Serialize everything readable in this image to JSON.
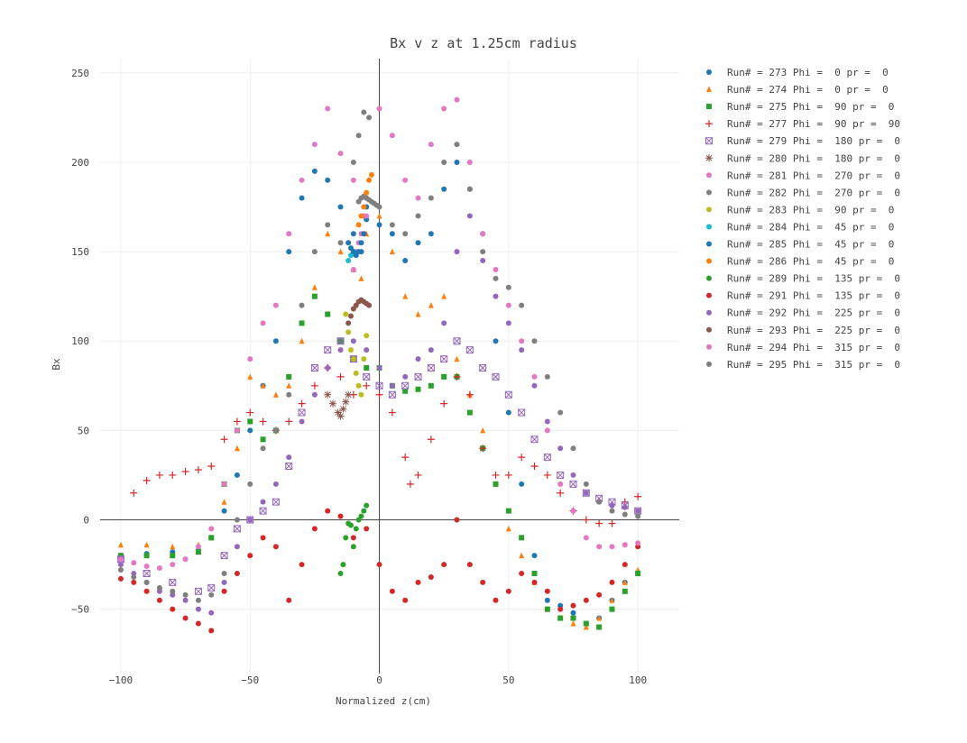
{
  "chart_data": {
    "type": "scatter",
    "title": "Bx v z at 1.25cm radius",
    "xlabel": "Normalized z(cm)",
    "ylabel": "Bx",
    "xlim": [
      -108,
      116
    ],
    "ylim": [
      -86,
      258
    ],
    "xticks": [
      -100,
      -50,
      0,
      50,
      100
    ],
    "yticks": [
      -50,
      0,
      50,
      100,
      150,
      200,
      250
    ],
    "xtick_labels": [
      "−100",
      "−50",
      "0",
      "50",
      "100"
    ],
    "ytick_labels": [
      "−50",
      "0",
      "50",
      "100",
      "150",
      "200",
      "250"
    ],
    "grid": true,
    "legend_position": "right",
    "series": [
      {
        "name": "Run# = 273 Phi =  0 pr =  0",
        "color": "#1f77b4",
        "marker": "circle",
        "x": [
          -100,
          -90,
          -80,
          -70,
          -65,
          -60,
          -55,
          -50,
          -45,
          -40,
          -35,
          -30,
          -25,
          -20,
          -15,
          -10,
          -7,
          -5,
          0,
          5,
          10,
          15,
          20,
          25,
          30,
          35,
          40,
          45,
          50,
          55,
          60,
          65,
          70,
          75,
          80,
          85,
          90,
          95,
          100
        ],
        "y": [
          -20,
          -19,
          -18,
          -17,
          -10,
          5,
          25,
          50,
          75,
          100,
          150,
          180,
          195,
          190,
          175,
          160,
          150,
          175,
          165,
          160,
          145,
          155,
          160,
          185,
          200,
          185,
          160,
          100,
          60,
          20,
          -20,
          -45,
          -48,
          -52,
          -58,
          -55,
          -45,
          -35,
          -30
        ]
      },
      {
        "name": "Run# = 274 Phi =  0 pr =  0",
        "color": "#ff7f0e",
        "marker": "triangle",
        "x": [
          -100,
          -90,
          -80,
          -70,
          -65,
          -60,
          -55,
          -50,
          -45,
          -40,
          -35,
          -30,
          -25,
          -20,
          -15,
          -10,
          -7,
          -5,
          0,
          5,
          10,
          15,
          20,
          25,
          30,
          35,
          40,
          45,
          50,
          55,
          60,
          65,
          70,
          75,
          80,
          85,
          90,
          95,
          100
        ],
        "y": [
          -14,
          -14,
          -15,
          -14,
          -10,
          10,
          40,
          80,
          75,
          70,
          75,
          100,
          130,
          160,
          150,
          140,
          135,
          160,
          170,
          150,
          125,
          115,
          120,
          125,
          90,
          70,
          50,
          20,
          -5,
          -20,
          -35,
          -50,
          -55,
          -58,
          -60,
          -55,
          -45,
          -35,
          -28
        ]
      },
      {
        "name": "Run# = 275 Phi =  90 pr =  0",
        "color": "#2ca02c",
        "marker": "square",
        "x": [
          -100,
          -90,
          -80,
          -70,
          -65,
          -60,
          -55,
          -50,
          -45,
          -40,
          -35,
          -30,
          -25,
          -20,
          -15,
          -10,
          -5,
          0,
          5,
          10,
          15,
          20,
          25,
          30,
          35,
          40,
          45,
          50,
          55,
          60,
          65,
          70,
          75,
          80,
          85,
          90,
          95,
          100
        ],
        "y": [
          -20,
          -20,
          -20,
          -18,
          -10,
          20,
          50,
          55,
          45,
          50,
          80,
          110,
          125,
          115,
          100,
          90,
          85,
          85,
          75,
          72,
          73,
          75,
          80,
          80,
          60,
          40,
          20,
          5,
          -10,
          -30,
          -50,
          -55,
          -55,
          -58,
          -60,
          -50,
          -40,
          -30
        ]
      },
      {
        "name": "Run# = 277 Phi =  90 pr =  90",
        "color": "#d62728",
        "marker": "cross",
        "x": [
          -95,
          -90,
          -85,
          -80,
          -75,
          -70,
          -65,
          -60,
          -55,
          -50,
          -45,
          -40,
          -35,
          -30,
          -25,
          -20,
          -15,
          -10,
          -5,
          0,
          5,
          10,
          12,
          15,
          20,
          25,
          30,
          35,
          40,
          45,
          50,
          55,
          60,
          65,
          70,
          75,
          80,
          85,
          90,
          95,
          100
        ],
        "y": [
          15,
          22,
          25,
          25,
          27,
          28,
          30,
          45,
          55,
          60,
          55,
          50,
          55,
          65,
          75,
          85,
          80,
          70,
          75,
          70,
          60,
          35,
          20,
          25,
          45,
          65,
          80,
          70,
          40,
          25,
          25,
          35,
          30,
          25,
          15,
          5,
          0,
          -2,
          -2,
          10,
          13
        ]
      },
      {
        "name": "Run# = 279 Phi =  180 pr =  0",
        "color": "#9467bd",
        "marker": "square-x",
        "x": [
          -100,
          -90,
          -80,
          -70,
          -65,
          -60,
          -55,
          -50,
          -45,
          -40,
          -35,
          -30,
          -25,
          -20,
          -15,
          -10,
          -5,
          0,
          5,
          10,
          15,
          20,
          25,
          30,
          35,
          40,
          45,
          50,
          55,
          60,
          65,
          70,
          75,
          80,
          85,
          90,
          95,
          100
        ],
        "y": [
          -22,
          -30,
          -35,
          -40,
          -38,
          -20,
          -5,
          0,
          5,
          10,
          30,
          60,
          85,
          95,
          100,
          90,
          80,
          75,
          70,
          75,
          80,
          85,
          90,
          100,
          95,
          85,
          80,
          70,
          60,
          45,
          35,
          25,
          20,
          15,
          12,
          10,
          8,
          5
        ]
      },
      {
        "name": "Run# = 280 Phi =  180 pr =  0",
        "color": "#8c564b",
        "marker": "star",
        "x": [
          -20,
          -18,
          -16,
          -15,
          -14,
          -13,
          -12
        ],
        "y": [
          70,
          65,
          60,
          58,
          62,
          66,
          70
        ]
      },
      {
        "name": "Run# = 281 Phi =  270 pr =  0",
        "color": "#e377c2",
        "marker": "circle",
        "x": [
          -10,
          -9,
          -8,
          -7,
          -6,
          -5
        ],
        "y": [
          140,
          150,
          155,
          160,
          170,
          180
        ]
      },
      {
        "name": "Run# = 282 Phi =  270 pr =  0",
        "color": "#7f7f7f",
        "marker": "circle",
        "x": [
          -8,
          -7,
          -6,
          -5,
          -4,
          -3,
          -2,
          -1
        ],
        "y": [
          178,
          180,
          181,
          180,
          179,
          178,
          177,
          176
        ]
      },
      {
        "name": "Run# = 283 Phi =  90 pr =  0",
        "color": "#bcbd22",
        "marker": "circle",
        "x": [
          -13,
          -12,
          -11,
          -10,
          -9,
          -8,
          -7,
          -6,
          -5
        ],
        "y": [
          115,
          105,
          95,
          90,
          82,
          75,
          70,
          90,
          103
        ]
      },
      {
        "name": "Run# = 284 Phi =  45 pr =  0",
        "color": "#17becf",
        "marker": "circle",
        "x": [
          -12,
          -11,
          -10
        ],
        "y": [
          145,
          148,
          150
        ]
      },
      {
        "name": "Run# = 285 Phi =  45 pr =  0",
        "color": "#1f77b4",
        "marker": "circle",
        "x": [
          -12,
          -11,
          -10,
          -9,
          -8,
          -7,
          -6,
          -5
        ],
        "y": [
          155,
          152,
          150,
          148,
          150,
          155,
          160,
          168
        ]
      },
      {
        "name": "Run# = 286 Phi =  45 pr =  0",
        "color": "#ff7f0e",
        "marker": "circle",
        "x": [
          -8,
          -7,
          -6,
          -5,
          -4,
          -3
        ],
        "y": [
          165,
          170,
          175,
          183,
          190,
          193
        ]
      },
      {
        "name": "Run# = 289 Phi =  135 pr =  0",
        "color": "#2ca02c",
        "marker": "circle",
        "x": [
          -15,
          -14,
          -13,
          -12,
          -11,
          -10,
          -9,
          -8,
          -7,
          -6,
          -5
        ],
        "y": [
          -30,
          -25,
          -10,
          -2,
          -3,
          -15,
          -5,
          0,
          2,
          5,
          8
        ]
      },
      {
        "name": "Run# = 291 Phi =  135 pr =  0",
        "color": "#d62728",
        "marker": "circle",
        "x": [
          -100,
          -95,
          -90,
          -85,
          -80,
          -75,
          -70,
          -65,
          -60,
          -55,
          -50,
          -45,
          -40,
          -35,
          -30,
          -25,
          -20,
          -15,
          -10,
          -5,
          0,
          5,
          10,
          15,
          20,
          25,
          30,
          35,
          40,
          45,
          50,
          55,
          60,
          65,
          70,
          75,
          80,
          85,
          90,
          95,
          100
        ],
        "y": [
          -33,
          -35,
          -40,
          -45,
          -50,
          -55,
          -58,
          -62,
          -40,
          -30,
          -20,
          -10,
          -15,
          -45,
          -25,
          -5,
          5,
          2,
          -10,
          -5,
          -25,
          -40,
          -45,
          -35,
          -32,
          -25,
          0,
          -25,
          -35,
          -45,
          -40,
          -30,
          -35,
          -40,
          -50,
          -48,
          -45,
          -42,
          -35,
          -25,
          -15
        ]
      },
      {
        "name": "Run# = 292 Phi =  225 pr =  0",
        "color": "#9467bd",
        "marker": "circle",
        "x": [
          -100,
          -95,
          -90,
          -85,
          -80,
          -75,
          -70,
          -65,
          -60,
          -55,
          -50,
          -45,
          -40,
          -35,
          -30,
          -25,
          -20,
          -15,
          -10,
          -5,
          0,
          5,
          10,
          15,
          20,
          25,
          30,
          35,
          40,
          45,
          50,
          55,
          60,
          65,
          70,
          75,
          80,
          85,
          90,
          95,
          100
        ],
        "y": [
          -25,
          -30,
          -35,
          -40,
          -42,
          -45,
          -50,
          -52,
          -35,
          -15,
          0,
          10,
          20,
          35,
          55,
          70,
          85,
          95,
          100,
          95,
          85,
          75,
          80,
          90,
          95,
          110,
          150,
          170,
          145,
          125,
          110,
          95,
          75,
          55,
          40,
          25,
          15,
          10,
          8,
          7,
          5
        ]
      },
      {
        "name": "Run# = 293 Phi =  225 pr =  0",
        "color": "#8c564b",
        "marker": "circle",
        "x": [
          -12,
          -11,
          -10,
          -9,
          -8,
          -7,
          -6,
          -5,
          -4
        ],
        "y": [
          110,
          114,
          118,
          120,
          122,
          123,
          122,
          121,
          120
        ]
      },
      {
        "name": "Run# = 294 Phi =  315 pr =  0",
        "color": "#e377c2",
        "marker": "circle",
        "x": [
          -100,
          -95,
          -90,
          -85,
          -80,
          -75,
          -70,
          -65,
          -60,
          -55,
          -50,
          -45,
          -40,
          -35,
          -30,
          -25,
          -20,
          -15,
          -10,
          -5,
          0,
          5,
          10,
          15,
          20,
          25,
          30,
          35,
          40,
          45,
          50,
          55,
          60,
          65,
          70,
          75,
          80,
          85,
          90,
          95,
          100
        ],
        "y": [
          -22,
          -24,
          -26,
          -27,
          -25,
          -22,
          -15,
          -5,
          20,
          50,
          90,
          110,
          120,
          160,
          190,
          210,
          230,
          205,
          190,
          170,
          230,
          215,
          190,
          180,
          210,
          230,
          235,
          200,
          160,
          140,
          120,
          100,
          80,
          50,
          20,
          5,
          -10,
          -15,
          -15,
          -14,
          -13
        ]
      },
      {
        "name": "Run# = 295 Phi =  315 pr =  0",
        "color": "#7f7f7f",
        "marker": "circle",
        "x": [
          -100,
          -95,
          -90,
          -85,
          -80,
          -75,
          -70,
          -65,
          -60,
          -55,
          -50,
          -45,
          -40,
          -35,
          -30,
          -25,
          -20,
          -15,
          -10,
          -8,
          -6,
          -4,
          0,
          5,
          10,
          15,
          20,
          25,
          30,
          35,
          40,
          45,
          50,
          55,
          60,
          65,
          70,
          75,
          80,
          85,
          90,
          95,
          100
        ],
        "y": [
          -28,
          -32,
          -35,
          -38,
          -40,
          -42,
          -45,
          -42,
          -30,
          0,
          20,
          40,
          50,
          70,
          120,
          150,
          165,
          155,
          200,
          215,
          228,
          225,
          175,
          165,
          160,
          170,
          180,
          200,
          210,
          185,
          150,
          135,
          130,
          120,
          100,
          80,
          60,
          40,
          20,
          10,
          5,
          3,
          2
        ]
      }
    ]
  }
}
